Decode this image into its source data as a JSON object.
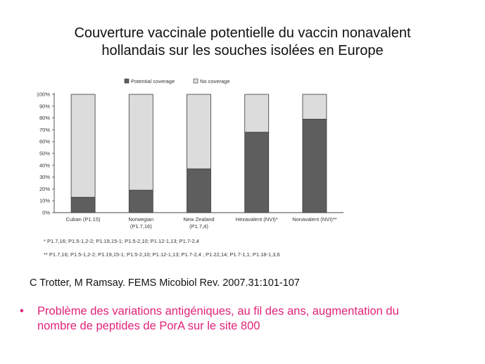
{
  "slide": {
    "title_line1": "Couverture vaccinale potentielle du vaccin nonavalent",
    "title_line2": "hollandais sur les souches isolées en Europe",
    "citation": "C Trotter, M Ramsay. FEMS Micobiol Rev. 2007.31:101-107",
    "bullet_symbol": "•",
    "bullet_line1": "Problème des variations antigéniques, au fil des ans, augmentation du",
    "bullet_line2": "nombre de peptides de PorA sur le site 800"
  },
  "colors": {
    "potential": "#5e5e5e",
    "no_coverage": "#dcdcdc",
    "bullet_text": "#e0237a"
  },
  "chart_data": {
    "type": "bar",
    "stacked": true,
    "categories": [
      [
        "Cuban (P1.15)"
      ],
      [
        "Norwegian",
        "(P1.7,16)"
      ],
      [
        "New Zealand",
        "(P1.7,4)"
      ],
      [
        "Hexavalent (NVI)*"
      ],
      [
        "Nonavalent (NVI)**"
      ]
    ],
    "series": [
      {
        "name": "Potential coverage",
        "values": [
          13,
          19,
          37,
          68,
          79
        ]
      },
      {
        "name": "No coverage",
        "values": [
          87,
          81,
          63,
          32,
          21
        ]
      }
    ],
    "y_ticks": [
      "0%",
      "10%",
      "20%",
      "30%",
      "40%",
      "50%",
      "60%",
      "70%",
      "80%",
      "90%",
      "100%"
    ],
    "ylim": [
      0,
      100
    ],
    "legend_position": "top",
    "footnotes": [
      "* P1.7,16; P1.5-1,2-2; P1.19,15-1; P1.5-2,10; P1.12-1,13; P1.7-2,4",
      "** P1.7,16; P1.5-1,2-2; P1.19,15-1; P1.5-2,10; P1.12-1,13; P1.7-2,4 ; P1.22,14; P1.7-1,1; P1.18-1,3,6"
    ]
  }
}
